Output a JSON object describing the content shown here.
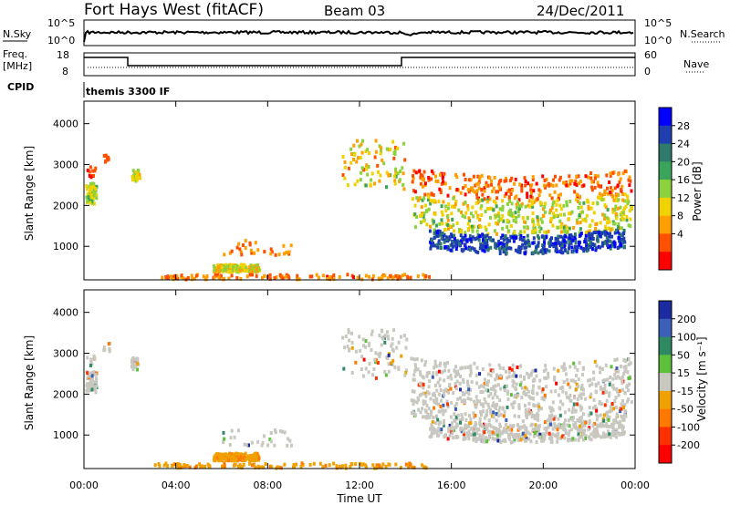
{
  "header": {
    "radar": "Fort Hays West (fitACF)",
    "beam": "Beam 03",
    "date": "24/Dec/2011"
  },
  "aux_panels": {
    "nsky": {
      "label": "N.Sky",
      "ticks": [
        "10^5",
        "10^0"
      ]
    },
    "nsearch": {
      "label": "N.Search",
      "ticks": [
        "10^5",
        "10^0"
      ]
    },
    "freq": {
      "label": "Freq.",
      "unit": "[MHz]",
      "ticks": [
        "18",
        "8"
      ]
    },
    "nave": {
      "label": "Nave",
      "ticks": [
        "60",
        "0"
      ]
    },
    "cpid": {
      "label": "CPID",
      "value": "themis 3300 IF"
    }
  },
  "chart_data": [
    {
      "type": "heatmap",
      "name": "power",
      "ylabel": "Slant Range [km]",
      "xlabel": "Time UT",
      "y_ticks": [
        "1000",
        "2000",
        "3000",
        "4000"
      ],
      "ylim": [
        180,
        4550
      ],
      "xlim": [
        0,
        24
      ],
      "colorbar_label": "Power [dB]",
      "colorbar_ticks": [
        "4",
        "8",
        "12",
        "16",
        "20",
        "24",
        "28"
      ],
      "colorbar_colors": [
        "#0000ff",
        "#1f3fb0",
        "#2f7a6a",
        "#3aa55a",
        "#8cd23c",
        "#f0d200",
        "#ffa000",
        "#ff5000",
        "#ff0000"
      ]
    },
    {
      "type": "heatmap",
      "name": "velocity",
      "ylabel": "Slant Range [km]",
      "xlabel": "Time UT",
      "y_ticks": [
        "1000",
        "2000",
        "3000",
        "4000"
      ],
      "ylim": [
        180,
        4550
      ],
      "xlim": [
        0,
        24
      ],
      "colorbar_label": "Velocity [m s⁻¹]",
      "colorbar_ticks": [
        "200",
        "100",
        "50",
        "15",
        "-15",
        "-50",
        "-100",
        "-200"
      ],
      "colorbar_colors": [
        "#1c2ca0",
        "#3a60b8",
        "#2f8a64",
        "#5cc03a",
        "#c8c8c0",
        "#f0a000",
        "#ff7800",
        "#ff3000",
        "#ff0000"
      ]
    }
  ],
  "x_axis": {
    "label": "Time UT",
    "ticks": [
      "00:00",
      "04:00",
      "08:00",
      "12:00",
      "16:00",
      "20:00",
      "00:00"
    ]
  }
}
